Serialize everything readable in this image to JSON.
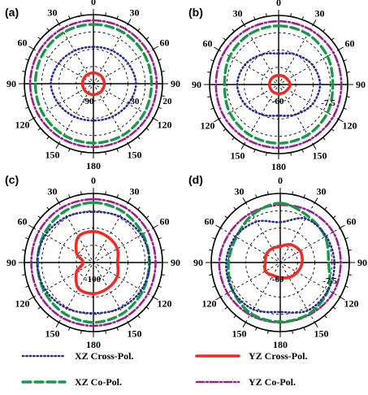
{
  "chart_data": {
    "type": "polar",
    "angle_labels": [
      "0",
      "30",
      "60",
      "90",
      "120",
      "150",
      "180",
      "150",
      "120",
      "90",
      "60",
      "30"
    ],
    "series_styles": {
      "XZ Cross-Pol.": {
        "color": "#2a2f8c",
        "dash": "1.2,3.2",
        "width": 2.6
      },
      "YZ Cross-Pol.": {
        "color": "#ee2b24",
        "dash": "",
        "width": 3.6
      },
      "XZ Co-Pol.": {
        "color": "#169a47",
        "dash": "10,5",
        "width": 3.4
      },
      "YZ Co-Pol.": {
        "color": "#9b1f8c",
        "dash": "9,3,2,3",
        "width": 2.6
      }
    },
    "legend": [
      {
        "name": "XZ Cross-Pol.",
        "position": "bottom-left"
      },
      {
        "name": "YZ Cross-Pol.",
        "position": "bottom-right"
      },
      {
        "name": "XZ Co-Pol.",
        "position": "bottom-left"
      },
      {
        "name": "YZ Co-Pol.",
        "position": "bottom-right"
      }
    ],
    "panels": [
      {
        "label": "(a)",
        "radial_labels": [
          "-90",
          "-30",
          "20"
        ],
        "rlim": [
          -100,
          20
        ],
        "series": [
          {
            "name": "YZ Co-Pol.",
            "values": [
              [
                0,
                10
              ],
              [
                30,
                10
              ],
              [
                60,
                10
              ],
              [
                90,
                10
              ],
              [
                120,
                10
              ],
              [
                150,
                10
              ],
              [
                180,
                10
              ],
              [
                210,
                10
              ],
              [
                240,
                10
              ],
              [
                270,
                10
              ],
              [
                300,
                10
              ],
              [
                330,
                10
              ],
              [
                360,
                10
              ]
            ]
          },
          {
            "name": "XZ Co-Pol.",
            "values": [
              [
                0,
                3
              ],
              [
                30,
                3
              ],
              [
                60,
                2
              ],
              [
                90,
                1
              ],
              [
                120,
                2
              ],
              [
                150,
                3
              ],
              [
                180,
                3
              ],
              [
                210,
                3
              ],
              [
                240,
                2
              ],
              [
                270,
                1
              ],
              [
                300,
                2
              ],
              [
                330,
                3
              ],
              [
                360,
                3
              ]
            ]
          },
          {
            "name": "XZ Cross-Pol.",
            "values": [
              [
                0,
                -36
              ],
              [
                30,
                -34
              ],
              [
                60,
                -30
              ],
              [
                90,
                -26
              ],
              [
                120,
                -30
              ],
              [
                150,
                -34
              ],
              [
                180,
                -36
              ],
              [
                210,
                -34
              ],
              [
                240,
                -30
              ],
              [
                270,
                -26
              ],
              [
                300,
                -30
              ],
              [
                330,
                -34
              ],
              [
                360,
                -36
              ]
            ]
          },
          {
            "name": "YZ Cross-Pol.",
            "values": [
              [
                0,
                -81
              ],
              [
                45,
                -81
              ],
              [
                90,
                -81
              ],
              [
                135,
                -81
              ],
              [
                180,
                -81
              ],
              [
                225,
                -81
              ],
              [
                270,
                -81
              ],
              [
                315,
                -81
              ],
              [
                360,
                -81
              ]
            ]
          }
        ]
      },
      {
        "label": "(b)",
        "radial_labels": [
          "-60",
          "-7.5"
        ],
        "rlim": [
          -100,
          20
        ],
        "series": [
          {
            "name": "YZ Co-Pol.",
            "values": [
              [
                0,
                10
              ],
              [
                30,
                10
              ],
              [
                60,
                10
              ],
              [
                90,
                9
              ],
              [
                120,
                10
              ],
              [
                150,
                10
              ],
              [
                180,
                10
              ],
              [
                210,
                10
              ],
              [
                240,
                10
              ],
              [
                270,
                9
              ],
              [
                300,
                10
              ],
              [
                330,
                10
              ],
              [
                360,
                10
              ]
            ]
          },
          {
            "name": "XZ Co-Pol.",
            "values": [
              [
                0,
                2
              ],
              [
                30,
                1
              ],
              [
                60,
                -2
              ],
              [
                90,
                -6
              ],
              [
                120,
                -2
              ],
              [
                150,
                1
              ],
              [
                180,
                2
              ],
              [
                210,
                1
              ],
              [
                240,
                -2
              ],
              [
                270,
                -6
              ],
              [
                300,
                -2
              ],
              [
                330,
                1
              ],
              [
                360,
                2
              ]
            ]
          },
          {
            "name": "XZ Cross-Pol.",
            "values": [
              [
                0,
                -46
              ],
              [
                30,
                -40
              ],
              [
                60,
                -32
              ],
              [
                90,
                -28
              ],
              [
                120,
                -32
              ],
              [
                150,
                -40
              ],
              [
                180,
                -46
              ],
              [
                210,
                -40
              ],
              [
                240,
                -32
              ],
              [
                270,
                -28
              ],
              [
                300,
                -32
              ],
              [
                330,
                -40
              ],
              [
                360,
                -46
              ]
            ]
          },
          {
            "name": "YZ Cross-Pol.",
            "values": [
              [
                0,
                -84
              ],
              [
                45,
                -83
              ],
              [
                90,
                -80
              ],
              [
                135,
                -83
              ],
              [
                180,
                -84
              ],
              [
                225,
                -84
              ],
              [
                270,
                -84
              ],
              [
                315,
                -84
              ],
              [
                360,
                -84
              ]
            ]
          }
        ]
      },
      {
        "label": "(c)",
        "radial_labels": [
          "-100"
        ],
        "rlim": [
          -100,
          20
        ],
        "series": [
          {
            "name": "YZ Co-Pol.",
            "values": [
              [
                0,
                10
              ],
              [
                30,
                10
              ],
              [
                60,
                9
              ],
              [
                90,
                8
              ],
              [
                120,
                9
              ],
              [
                150,
                10
              ],
              [
                180,
                10
              ],
              [
                210,
                10
              ],
              [
                240,
                9
              ],
              [
                270,
                8
              ],
              [
                300,
                9
              ],
              [
                330,
                10
              ],
              [
                360,
                10
              ]
            ]
          },
          {
            "name": "XZ Co-Pol.",
            "values": [
              [
                0,
                4
              ],
              [
                30,
                2
              ],
              [
                60,
                -1
              ],
              [
                90,
                -3
              ],
              [
                120,
                -1
              ],
              [
                150,
                2
              ],
              [
                180,
                4
              ],
              [
                210,
                2
              ],
              [
                240,
                -1
              ],
              [
                270,
                -3
              ],
              [
                300,
                -1
              ],
              [
                330,
                2
              ],
              [
                360,
                4
              ]
            ]
          },
          {
            "name": "XZ Cross-Pol.",
            "values": [
              [
                0,
                -12
              ],
              [
                30,
                -8
              ],
              [
                60,
                -4
              ],
              [
                90,
                -2
              ],
              [
                120,
                -4
              ],
              [
                150,
                -8
              ],
              [
                180,
                -12
              ],
              [
                210,
                -8
              ],
              [
                240,
                -4
              ],
              [
                270,
                -2
              ],
              [
                300,
                -4
              ],
              [
                330,
                -8
              ],
              [
                360,
                -12
              ]
            ]
          },
          {
            "name": "YZ Cross-Pol.",
            "values": [
              [
                0,
                -46
              ],
              [
                30,
                -49
              ],
              [
                60,
                -52
              ],
              [
                90,
                -58
              ],
              [
                120,
                -52
              ],
              [
                150,
                -49
              ],
              [
                180,
                -46
              ],
              [
                210,
                -48
              ],
              [
                240,
                -66
              ],
              [
                270,
                -82
              ],
              [
                300,
                -66
              ],
              [
                330,
                -48
              ],
              [
                360,
                -46
              ]
            ]
          }
        ]
      },
      {
        "label": "(d)",
        "radial_labels": [
          "-60",
          "-7.5"
        ],
        "rlim": [
          -100,
          20
        ],
        "series": [
          {
            "name": "YZ Co-Pol.",
            "values": [
              [
                0,
                0
              ],
              [
                30,
                3
              ],
              [
                60,
                6
              ],
              [
                90,
                5
              ],
              [
                120,
                6
              ],
              [
                150,
                4
              ],
              [
                180,
                4
              ],
              [
                210,
                5
              ],
              [
                240,
                6
              ],
              [
                270,
                6
              ],
              [
                300,
                2
              ],
              [
                330,
                0
              ],
              [
                360,
                0
              ]
            ]
          },
          {
            "name": "XZ Co-Pol.",
            "values": [
              [
                0,
                3
              ],
              [
                30,
                -6
              ],
              [
                60,
                -10
              ],
              [
                90,
                -16
              ],
              [
                120,
                -4
              ],
              [
                150,
                2
              ],
              [
                180,
                3
              ],
              [
                210,
                2
              ],
              [
                240,
                -4
              ],
              [
                270,
                -10
              ],
              [
                300,
                -12
              ],
              [
                330,
                -4
              ],
              [
                360,
                3
              ]
            ]
          },
          {
            "name": "XZ Cross-Pol.",
            "values": [
              [
                0,
                -30
              ],
              [
                30,
                -12
              ],
              [
                60,
                -8
              ],
              [
                90,
                -6
              ],
              [
                120,
                -4
              ],
              [
                150,
                -4
              ],
              [
                180,
                -14
              ],
              [
                210,
                -6
              ],
              [
                240,
                -4
              ],
              [
                270,
                -6
              ],
              [
                300,
                -10
              ],
              [
                330,
                -18
              ],
              [
                360,
                -30
              ]
            ]
          },
          {
            "name": "YZ Cross-Pol.",
            "values": [
              [
                0,
                -72
              ],
              [
                30,
                -64
              ],
              [
                60,
                -60
              ],
              [
                90,
                -62
              ],
              [
                120,
                -66
              ],
              [
                150,
                -70
              ],
              [
                180,
                -74
              ],
              [
                210,
                -74
              ],
              [
                240,
                -70
              ],
              [
                270,
                -74
              ],
              [
                300,
                -72
              ],
              [
                330,
                -72
              ],
              [
                360,
                -72
              ]
            ]
          }
        ]
      }
    ]
  }
}
